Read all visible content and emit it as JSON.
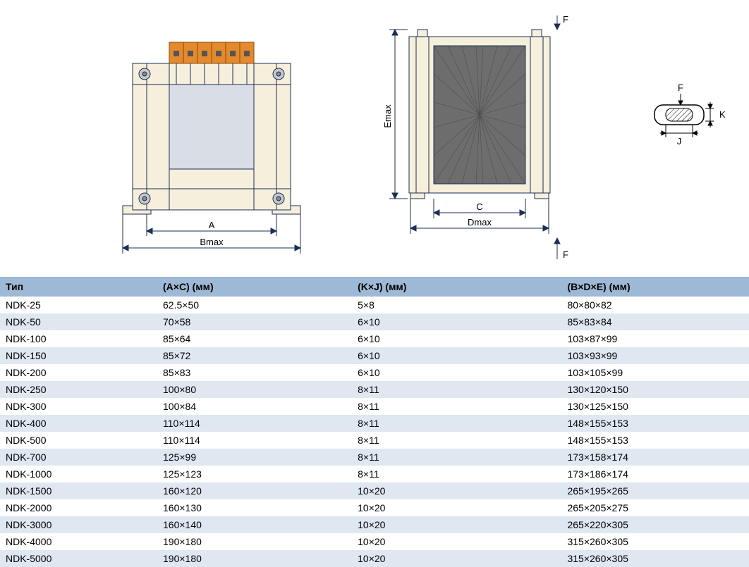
{
  "diagrams": {
    "front": {
      "label_A": "A",
      "label_Bmax": "Bmax",
      "colors": {
        "frame_fill": "#f5efdc",
        "frame_stroke": "#1a2f5a",
        "window_fill": "#d9dee6",
        "terminal_fill": "#e48a2d",
        "terminal_stroke": "#8a4a10",
        "bolt": "#c9c9c9",
        "dim_line": "#1a2f5a"
      }
    },
    "side": {
      "label_C": "C",
      "label_Dmax": "Dmax",
      "label_Emax": "Emax",
      "label_F_top": "F",
      "label_F_bottom": "F",
      "colors": {
        "frame_fill": "#f5efdc",
        "frame_stroke": "#1a2f5a",
        "core_fill": "#6d6d6d",
        "core_hatch": "#4f4f4f",
        "dim_line": "#1a2f5a"
      }
    },
    "slot": {
      "label_F": "F",
      "label_J": "J",
      "label_K": "K",
      "colors": {
        "stroke": "#000000",
        "hatch": "#000000"
      }
    }
  },
  "table": {
    "headers": {
      "type": "Тип",
      "ac": "(A×C) (мм)",
      "kj": "(K×J) (мм)",
      "bde": "(B×D×E) (мм)"
    },
    "rows": [
      {
        "type": "NDK-25",
        "ac": "62.5×50",
        "kj": "5×8",
        "bde": "80×80×82"
      },
      {
        "type": "NDK-50",
        "ac": "70×58",
        "kj": "6×10",
        "bde": "85×83×84"
      },
      {
        "type": "NDK-100",
        "ac": "85×64",
        "kj": "6×10",
        "bde": "103×87×99"
      },
      {
        "type": "NDK-150",
        "ac": "85×72",
        "kj": "6×10",
        "bde": "103×93×99"
      },
      {
        "type": "NDK-200",
        "ac": "85×83",
        "kj": "6×10",
        "bde": "103×105×99"
      },
      {
        "type": "NDK-250",
        "ac": "100×80",
        "kj": "8×11",
        "bde": "130×120×150"
      },
      {
        "type": "NDK-300",
        "ac": "100×84",
        "kj": "8×11",
        "bde": "130×125×150"
      },
      {
        "type": "NDK-400",
        "ac": "110×114",
        "kj": "8×11",
        "bde": "148×155×153"
      },
      {
        "type": "NDK-500",
        "ac": "110×114",
        "kj": "8×11",
        "bde": "148×155×153"
      },
      {
        "type": "NDK-700",
        "ac": "125×99",
        "kj": "8×11",
        "bde": "173×158×174"
      },
      {
        "type": "NDK-1000",
        "ac": "125×123",
        "kj": "8×11",
        "bde": "173×186×174"
      },
      {
        "type": "NDK-1500",
        "ac": "160×120",
        "kj": "10×20",
        "bde": "265×195×265"
      },
      {
        "type": "NDK-2000",
        "ac": "160×130",
        "kj": "10×20",
        "bde": "265×205×275"
      },
      {
        "type": "NDK-3000",
        "ac": "160×140",
        "kj": "10×20",
        "bde": "265×220×305"
      },
      {
        "type": "NDK-4000",
        "ac": "190×180",
        "kj": "10×20",
        "bde": "315×260×305"
      },
      {
        "type": "NDK-5000",
        "ac": "190×180",
        "kj": "10×20",
        "bde": "315×260×305"
      }
    ]
  }
}
